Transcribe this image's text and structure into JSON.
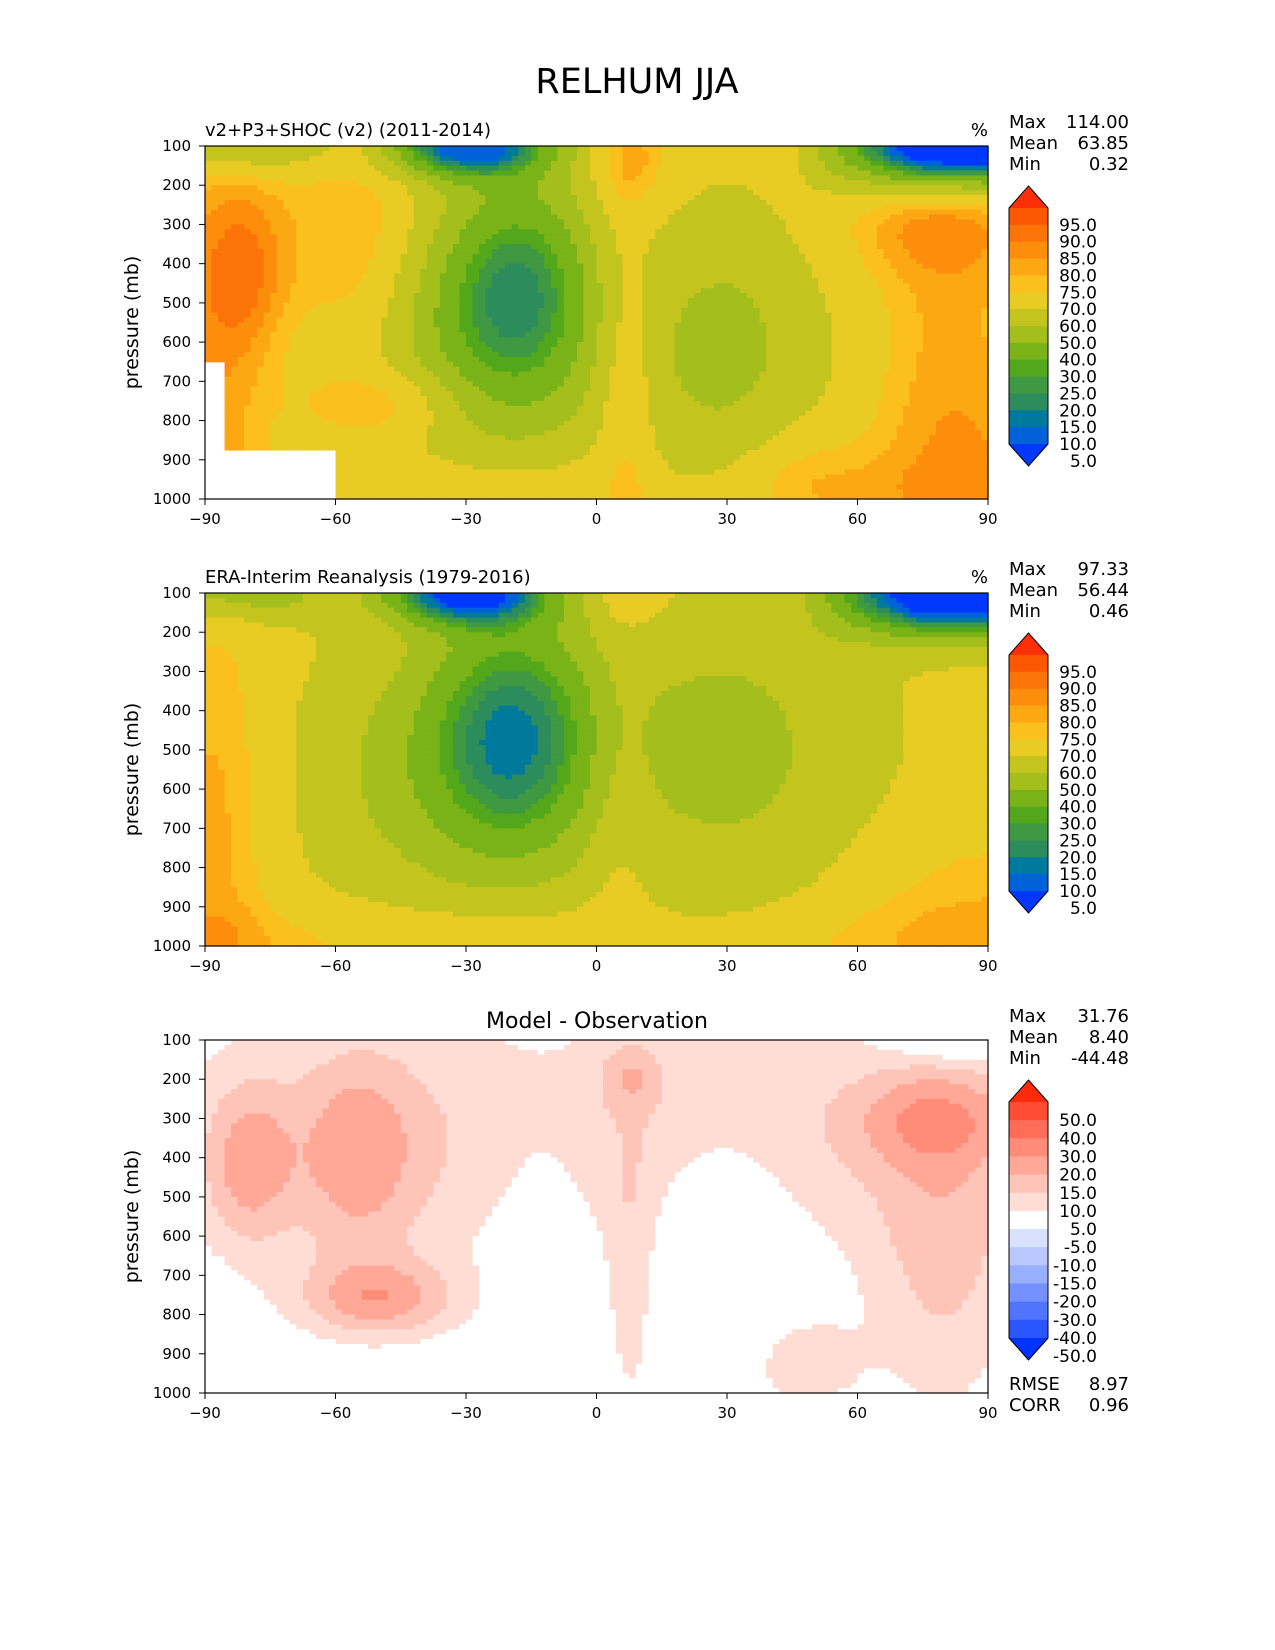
{
  "figure_title": "RELHUM JJA",
  "chart_data": [
    {
      "type": "heatmap",
      "panel": "test",
      "title": "v2+P3+SHOC (v2) (2011-2014)",
      "units": "%",
      "xlabel": "",
      "ylabel": "pressure (mb)",
      "xlim": [
        -90,
        90
      ],
      "ylim": [
        1000,
        100
      ],
      "xticks": [
        "−90",
        "−60",
        "−30",
        "0",
        "30",
        "60",
        "90"
      ],
      "yticks": [
        "100",
        "200",
        "300",
        "400",
        "500",
        "600",
        "700",
        "800",
        "900",
        "1000"
      ],
      "stats": {
        "max_label": "Max",
        "max": "114.00",
        "mean_label": "Mean",
        "mean": "63.85",
        "min_label": "Min",
        "min": "0.32"
      },
      "colorbar_labels": [
        "95.0",
        "90.0",
        "85.0",
        "80.0",
        "75.0",
        "70.0",
        "60.0",
        "50.0",
        "40.0",
        "30.0",
        "25.0",
        "20.0",
        "15.0",
        "10.0",
        "5.0"
      ],
      "field_hint": "low RH near 100 mb at high latitudes and centered at -20; minimum ~15% near -20 lat at 500 mb; high RH (>90%) south of -80 and in northern polar low levels"
    },
    {
      "type": "heatmap",
      "panel": "reference",
      "title": "ERA-Interim Reanalysis (1979-2016)",
      "units": "%",
      "xlabel": "",
      "ylabel": "pressure (mb)",
      "xlim": [
        -90,
        90
      ],
      "ylim": [
        1000,
        100
      ],
      "xticks": [
        "−90",
        "−60",
        "−30",
        "0",
        "30",
        "60",
        "90"
      ],
      "yticks": [
        "100",
        "200",
        "300",
        "400",
        "500",
        "600",
        "700",
        "800",
        "900",
        "1000"
      ],
      "stats": {
        "max_label": "Max",
        "max": "97.33",
        "mean_label": "Mean",
        "mean": "56.44",
        "min_label": "Min",
        "min": "0.46"
      },
      "colorbar_labels": [
        "95.0",
        "90.0",
        "85.0",
        "80.0",
        "75.0",
        "70.0",
        "60.0",
        "50.0",
        "40.0",
        "30.0",
        "25.0",
        "20.0",
        "15.0",
        "10.0",
        "5.0"
      ]
    },
    {
      "type": "heatmap",
      "panel": "difference",
      "title": "Model - Observation",
      "units": "",
      "xlabel": "",
      "ylabel": "pressure (mb)",
      "xlim": [
        -90,
        90
      ],
      "ylim": [
        1000,
        100
      ],
      "xticks": [
        "−90",
        "−60",
        "−30",
        "0",
        "30",
        "60",
        "90"
      ],
      "yticks": [
        "100",
        "200",
        "300",
        "400",
        "500",
        "600",
        "700",
        "800",
        "900",
        "1000"
      ],
      "stats": {
        "max_label": "Max",
        "max": "31.76",
        "mean_label": "Mean",
        "mean": "8.40",
        "min_label": "Min",
        "min": "-44.48"
      },
      "colorbar_labels": [
        "50.0",
        "40.0",
        "30.0",
        "20.0",
        "15.0",
        "10.0",
        "5.0",
        "-5.0",
        "-10.0",
        "-15.0",
        "-20.0",
        "-30.0",
        "-40.0",
        "-50.0"
      ],
      "metrics": {
        "rmse_label": "RMSE",
        "rmse": "8.97",
        "corr_label": "CORR",
        "corr": "0.96"
      }
    }
  ],
  "colors": {
    "full_scale": [
      "#0038ff",
      "#0062d8",
      "#007a9c",
      "#2d8c5c",
      "#3f9842",
      "#52a81a",
      "#79b317",
      "#a4be1c",
      "#c4c41e",
      "#e8cc24",
      "#fcc01e",
      "#fca812",
      "#fc8e0c",
      "#fc7408",
      "#fc5804",
      "#fc3008"
    ],
    "diff_scale": [
      "#0033ff",
      "#2a55ff",
      "#4f75ff",
      "#7491ff",
      "#98aeff",
      "#b8c8ff",
      "#d8e2ff",
      "#ffffff",
      "#ffdcd4",
      "#ffc4b8",
      "#ffa898",
      "#ff8c78",
      "#ff6c58",
      "#ff4c34",
      "#ff2a0a"
    ]
  }
}
